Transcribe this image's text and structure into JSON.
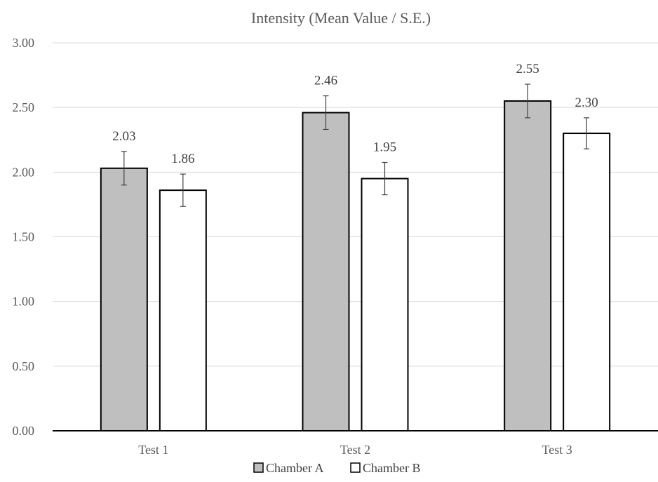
{
  "chart_data": {
    "type": "bar",
    "title": "Intensity (Mean Value / S.E.)",
    "xlabel": "",
    "ylabel": "",
    "categories": [
      "Test 1",
      "Test 2",
      "Test 3"
    ],
    "series": [
      {
        "name": "Chamber A",
        "values": [
          2.03,
          2.46,
          2.55
        ],
        "errors": [
          0.13,
          0.13,
          0.13
        ],
        "labels": [
          "2.03",
          "2.46",
          "2.55"
        ],
        "color": "#bfbfbf"
      },
      {
        "name": "Chamber B",
        "values": [
          1.86,
          1.95,
          2.3
        ],
        "errors": [
          0.125,
          0.125,
          0.12
        ],
        "labels": [
          "1.86",
          "1.95",
          "2.30"
        ],
        "color": "#ffffff"
      }
    ],
    "ylim": [
      0,
      3
    ],
    "yticks": [
      "0.00",
      "0.50",
      "1.00",
      "1.50",
      "2.00",
      "2.50",
      "3.00"
    ],
    "grid": true,
    "legend_position": "bottom"
  }
}
